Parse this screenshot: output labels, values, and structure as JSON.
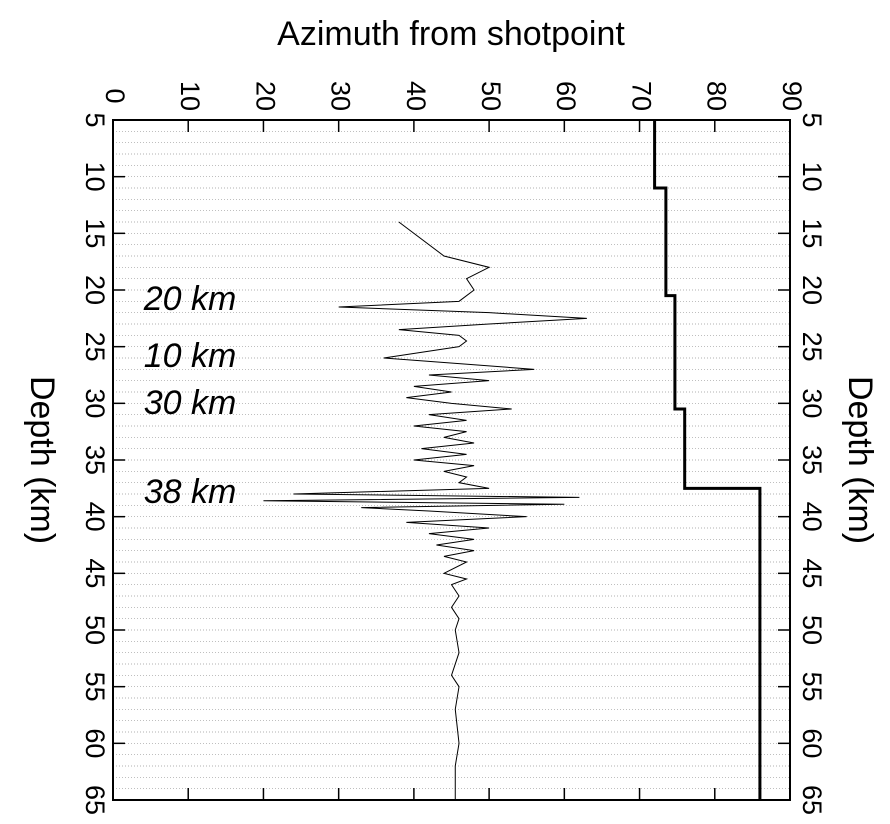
{
  "chart_data": {
    "type": "line",
    "title": "Azimuth from shotpoint",
    "y_label": "Depth (km)",
    "xlim": [
      0,
      90
    ],
    "xticks": [
      0,
      10,
      20,
      30,
      40,
      50,
      60,
      70,
      80,
      90
    ],
    "ylim": [
      5,
      65
    ],
    "yticks": [
      5,
      10,
      15,
      20,
      25,
      30,
      35,
      40,
      45,
      50,
      55,
      60,
      65
    ],
    "y_inverted": true,
    "grid": true,
    "annotations": [
      "20 km",
      "10 km",
      "30 km",
      "38 km"
    ],
    "series": [
      {
        "color": "#000000",
        "width": 3,
        "depth": [
          5,
          11,
          11,
          20.5,
          20.5,
          30.5,
          30.5,
          37.5,
          37.5,
          65
        ],
        "azimuth": [
          72,
          72,
          73.5,
          73.5,
          74.7,
          74.7,
          76,
          76,
          86,
          86
        ]
      },
      {
        "color": "#000000",
        "width": 1,
        "depth": [
          14,
          17,
          18,
          19,
          20,
          21,
          21.5,
          22,
          22.5,
          23,
          23.5,
          24,
          24.5,
          25,
          26,
          26.5,
          27,
          27.5,
          28,
          28.5,
          29,
          29.5,
          30,
          30.5,
          31,
          31.5,
          32,
          32.5,
          33,
          33.5,
          34,
          34.5,
          35,
          35.5,
          36,
          36.5,
          37,
          37.5,
          38,
          38.3,
          38.6,
          38.9,
          39.2,
          39.5,
          40,
          40.5,
          41,
          41.5,
          42,
          42.5,
          43,
          43.5,
          44,
          45,
          45.5,
          46,
          47,
          48,
          49,
          50,
          52,
          54,
          55,
          57,
          60,
          62,
          65
        ],
        "azimuth": [
          38,
          44,
          50,
          47,
          48,
          46,
          30,
          50,
          63,
          50,
          38,
          46,
          47,
          46,
          36,
          46,
          56,
          42,
          50,
          40,
          45,
          39,
          45,
          53,
          42,
          47,
          40,
          47,
          44,
          48,
          41,
          47,
          40,
          48,
          44,
          47,
          46,
          50,
          24,
          62,
          20,
          60,
          33,
          42,
          55,
          39,
          50,
          42,
          48,
          43,
          48,
          44,
          47,
          44,
          47,
          45,
          46,
          45,
          46,
          45.5,
          46,
          45,
          46,
          45.5,
          46,
          45.5,
          45.5
        ]
      }
    ]
  }
}
